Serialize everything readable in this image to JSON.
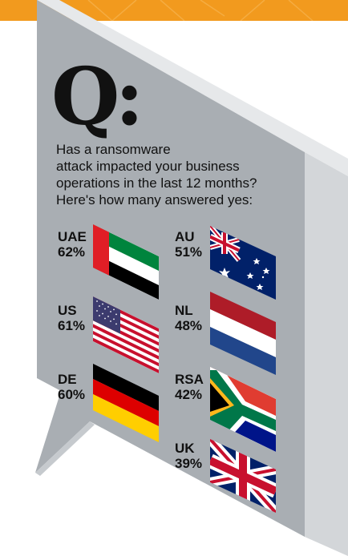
{
  "header": {
    "accent_color": "#F29A1E"
  },
  "bubble": {
    "fill": "#A9AEB3",
    "side": "#D3D6D9",
    "top": "#E6E8EA"
  },
  "question_mark": "Q:",
  "question_lines": [
    "Has a ransomware",
    "attack impacted your business",
    "operations in the last 12 months?",
    "Here's how many answered yes:"
  ],
  "countries": [
    {
      "code": "UAE",
      "percent": "62%",
      "flag": "uae-flag"
    },
    {
      "code": "US",
      "percent": "61%",
      "flag": "usa-flag"
    },
    {
      "code": "DE",
      "percent": "60%",
      "flag": "germany-flag"
    },
    {
      "code": "AU",
      "percent": "51%",
      "flag": "australia-flag"
    },
    {
      "code": "NL",
      "percent": "48%",
      "flag": "netherlands-flag"
    },
    {
      "code": "RSA",
      "percent": "42%",
      "flag": "south-africa-flag"
    },
    {
      "code": "UK",
      "percent": "39%",
      "flag": "uk-flag"
    }
  ]
}
